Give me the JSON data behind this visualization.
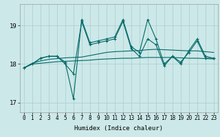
{
  "xlabel": "Humidex (Indice chaleur)",
  "background_color": "#cce8e8",
  "grid_color": "#aacccc",
  "line_color": "#006666",
  "xlim": [
    -0.5,
    23.5
  ],
  "ylim": [
    16.75,
    19.55
  ],
  "yticks": [
    17,
    18,
    19
  ],
  "xticks": [
    0,
    1,
    2,
    3,
    4,
    5,
    6,
    7,
    8,
    9,
    10,
    11,
    12,
    13,
    14,
    15,
    16,
    17,
    18,
    19,
    20,
    21,
    22,
    23
  ],
  "series_spiky1": [
    17.9,
    18.0,
    18.15,
    18.2,
    18.2,
    18.05,
    17.1,
    19.15,
    18.55,
    18.6,
    18.65,
    18.7,
    19.15,
    18.45,
    18.3,
    19.15,
    18.65,
    18.0,
    18.2,
    18.0,
    18.35,
    18.65,
    18.2,
    18.15
  ],
  "series_spiky2": [
    17.9,
    18.0,
    18.15,
    18.2,
    18.2,
    18.0,
    17.75,
    19.1,
    18.5,
    18.55,
    18.6,
    18.65,
    19.1,
    18.4,
    18.2,
    18.65,
    18.5,
    17.95,
    18.2,
    18.05,
    18.3,
    18.6,
    18.15,
    18.15
  ],
  "series_flat1": [
    17.9,
    18.0,
    18.02,
    18.04,
    18.06,
    18.07,
    18.08,
    18.09,
    18.1,
    18.12,
    18.13,
    18.14,
    18.15,
    18.15,
    18.16,
    18.17,
    18.17,
    18.17,
    18.17,
    18.16,
    18.15,
    18.15,
    18.14,
    18.13
  ],
  "series_flat2": [
    17.9,
    18.02,
    18.08,
    18.12,
    18.14,
    18.16,
    18.17,
    18.18,
    18.22,
    18.26,
    18.3,
    18.32,
    18.33,
    18.34,
    18.35,
    18.37,
    18.38,
    18.37,
    18.36,
    18.35,
    18.34,
    18.34,
    18.32,
    18.3
  ]
}
